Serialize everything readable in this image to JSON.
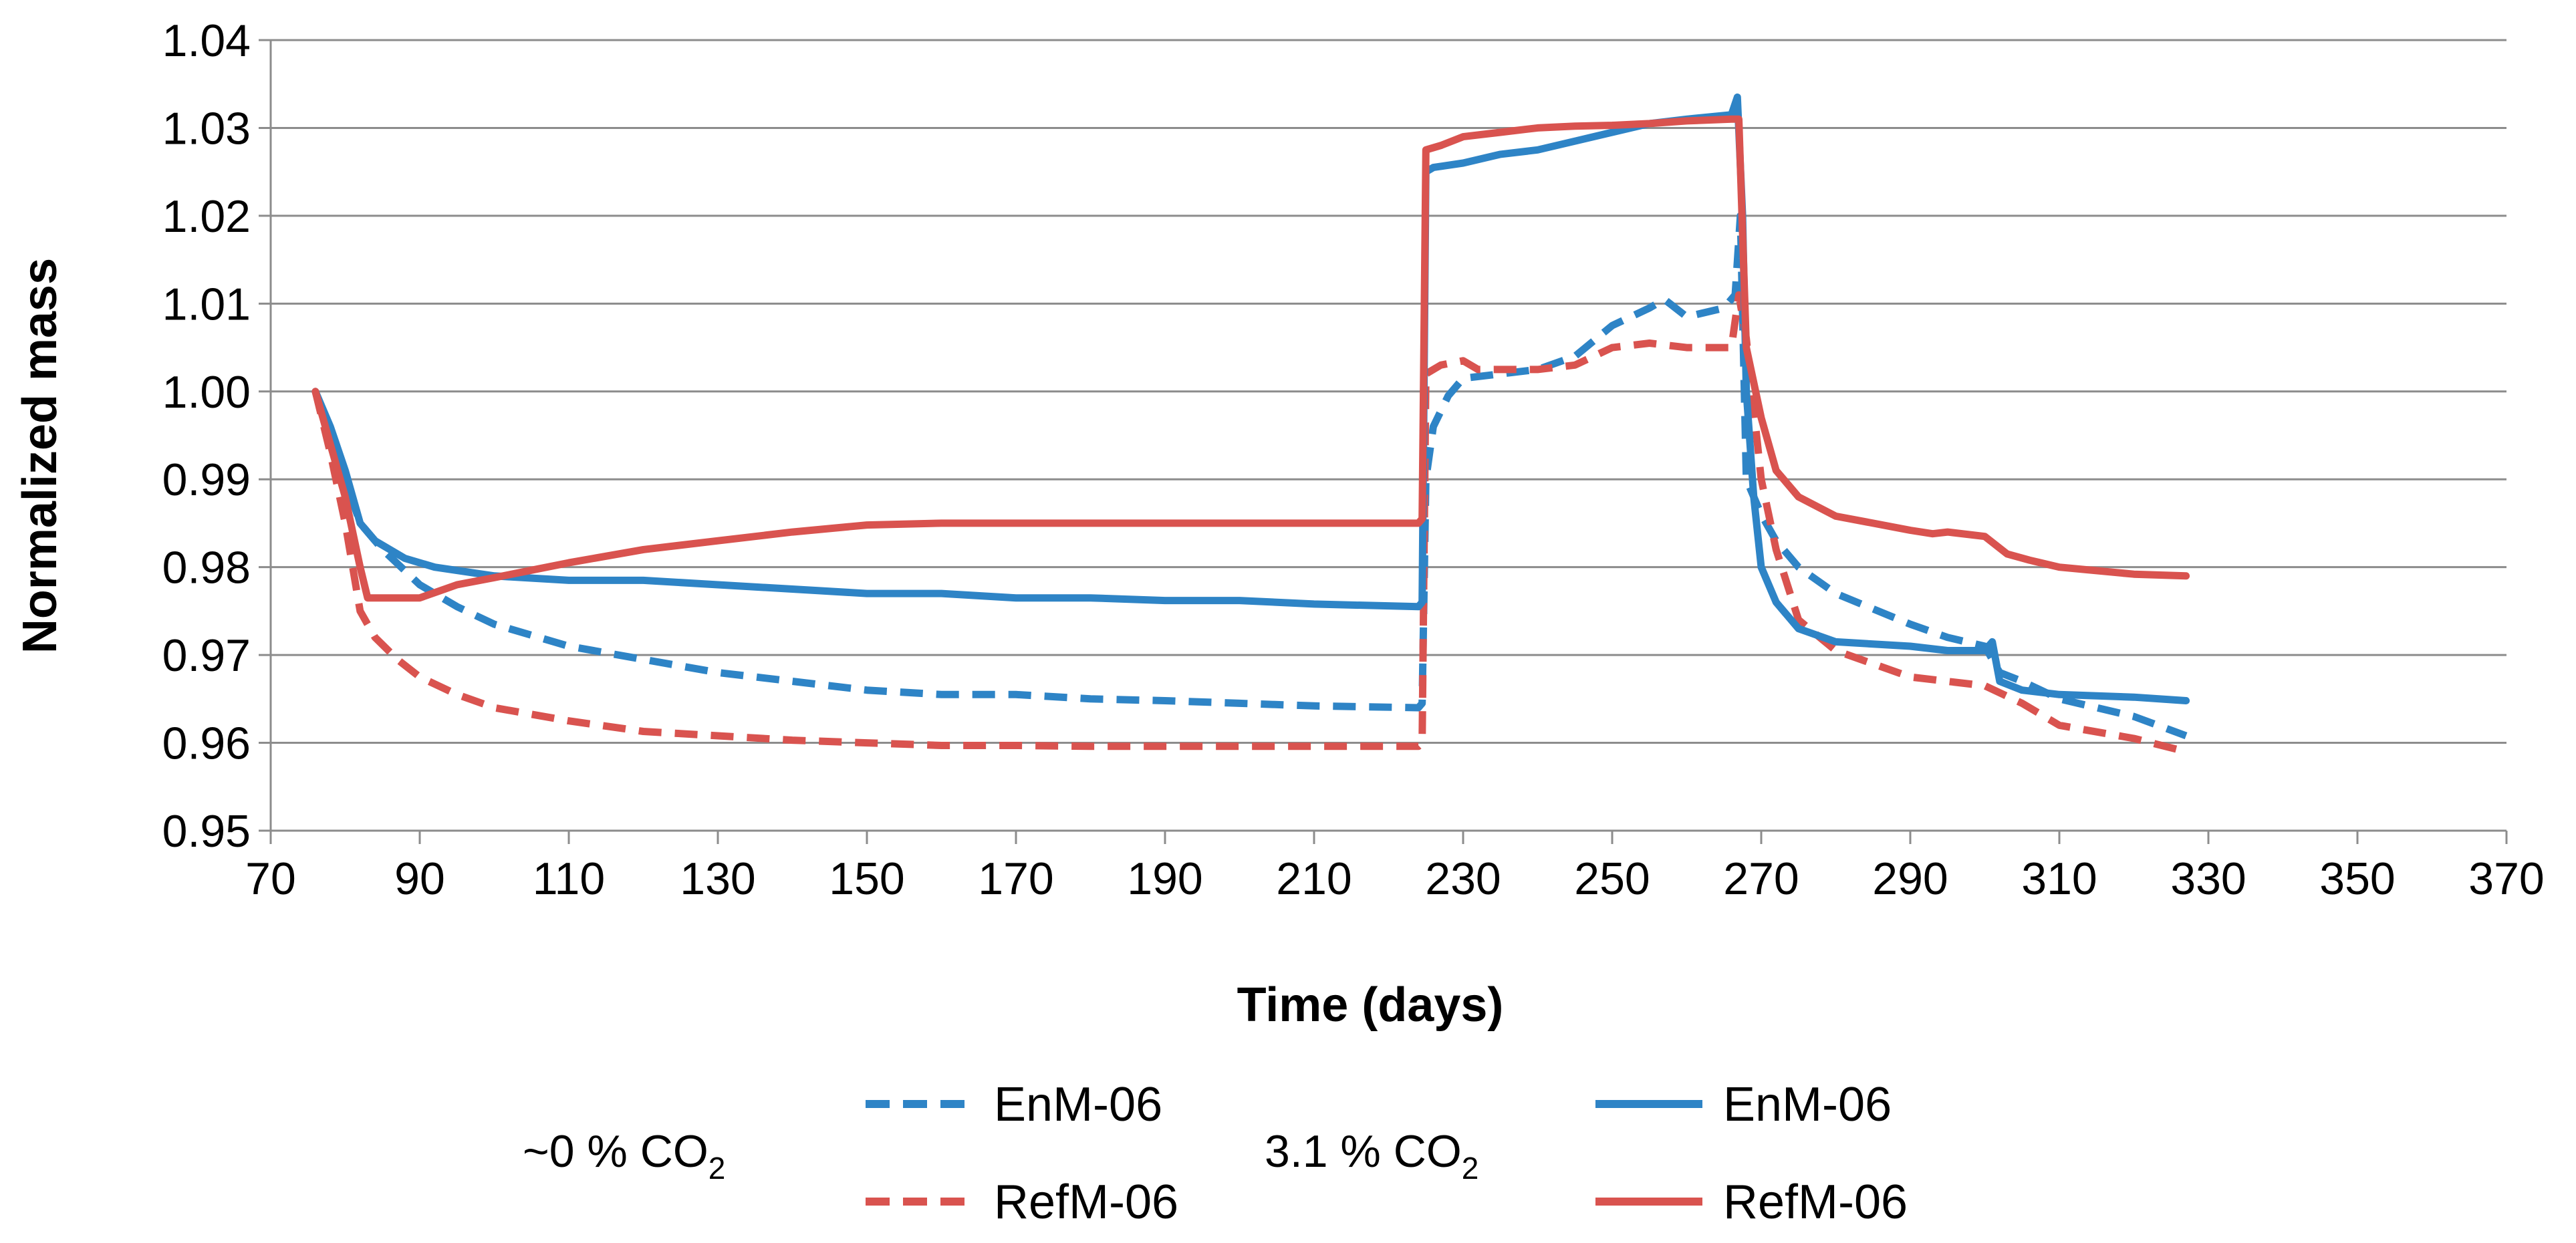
{
  "chart_data": {
    "type": "line",
    "title": "",
    "xlabel": "Time (days)",
    "ylabel": "Normalized mass",
    "xlim": [
      70,
      370
    ],
    "ylim": [
      0.95,
      1.04
    ],
    "x_ticks": [
      70,
      90,
      110,
      130,
      150,
      170,
      190,
      210,
      230,
      250,
      270,
      290,
      310,
      330,
      350,
      370
    ],
    "x_tick_labels": [
      "70",
      "90",
      "110",
      "130",
      "150",
      "170",
      "190",
      "210",
      "230",
      "250",
      "270",
      "290",
      "310",
      "330",
      "350",
      "370"
    ],
    "y_ticks": [
      0.95,
      0.96,
      0.97,
      0.98,
      0.99,
      1.0,
      1.01,
      1.02,
      1.03,
      1.04
    ],
    "y_tick_labels": [
      "0.95",
      "0.96",
      "0.97",
      "0.98",
      "0.99",
      "1.00",
      "1.01",
      "1.02",
      "1.03",
      "1.04"
    ],
    "grid": "horizontal",
    "legend_position": "bottom",
    "legend_groups": [
      {
        "label": "~0 % CO",
        "subscript": "2",
        "style": "dashed",
        "entries": [
          "EnM-06",
          "RefM-06"
        ]
      },
      {
        "label": "3.1 % CO",
        "subscript": "2",
        "style": "solid",
        "entries": [
          "EnM-06",
          "RefM-06"
        ]
      }
    ],
    "series": [
      {
        "name": "EnM-06",
        "group": "~0 % CO2",
        "color": "#2E84C6",
        "style": "dashed",
        "points": [
          [
            76,
            1.0
          ],
          [
            78,
            0.995
          ],
          [
            80,
            0.99
          ],
          [
            82,
            0.985
          ],
          [
            85,
            0.982
          ],
          [
            90,
            0.978
          ],
          [
            95,
            0.9755
          ],
          [
            100,
            0.9735
          ],
          [
            110,
            0.971
          ],
          [
            120,
            0.9695
          ],
          [
            130,
            0.968
          ],
          [
            140,
            0.967
          ],
          [
            150,
            0.966
          ],
          [
            160,
            0.9655
          ],
          [
            170,
            0.9655
          ],
          [
            180,
            0.965
          ],
          [
            190,
            0.9648
          ],
          [
            200,
            0.9645
          ],
          [
            210,
            0.9642
          ],
          [
            224,
            0.964
          ],
          [
            224.5,
            0.9645
          ],
          [
            225,
            0.99
          ],
          [
            226,
            0.996
          ],
          [
            228,
            0.9995
          ],
          [
            230,
            1.0015
          ],
          [
            235,
            1.002
          ],
          [
            240,
            1.0025
          ],
          [
            245,
            1.004
          ],
          [
            250,
            1.0075
          ],
          [
            255,
            1.0095
          ],
          [
            257,
            1.0105
          ],
          [
            260,
            1.0085
          ],
          [
            265,
            1.0095
          ],
          [
            266.5,
            1.011
          ],
          [
            267.2,
            1.02
          ],
          [
            268,
            0.99
          ],
          [
            270,
            0.986
          ],
          [
            272,
            0.983
          ],
          [
            275,
            0.98
          ],
          [
            280,
            0.977
          ],
          [
            290,
            0.9735
          ],
          [
            295,
            0.972
          ],
          [
            300,
            0.971
          ],
          [
            302,
            0.968
          ],
          [
            305,
            0.967
          ],
          [
            310,
            0.965
          ],
          [
            320,
            0.963
          ],
          [
            327,
            0.9608
          ]
        ]
      },
      {
        "name": "RefM-06",
        "group": "~0 % CO2",
        "color": "#D9534F",
        "style": "dashed",
        "points": [
          [
            76,
            1.0
          ],
          [
            78,
            0.993
          ],
          [
            80,
            0.985
          ],
          [
            82,
            0.975
          ],
          [
            84,
            0.972
          ],
          [
            87,
            0.9695
          ],
          [
            90,
            0.9675
          ],
          [
            95,
            0.9655
          ],
          [
            100,
            0.964
          ],
          [
            110,
            0.9625
          ],
          [
            120,
            0.9613
          ],
          [
            130,
            0.9608
          ],
          [
            140,
            0.9603
          ],
          [
            150,
            0.96
          ],
          [
            160,
            0.9597
          ],
          [
            170,
            0.9597
          ],
          [
            180,
            0.9596
          ],
          [
            190,
            0.9596
          ],
          [
            200,
            0.9596
          ],
          [
            210,
            0.9596
          ],
          [
            224,
            0.9596
          ],
          [
            224.5,
            0.96
          ],
          [
            225,
            1.002
          ],
          [
            227,
            1.003
          ],
          [
            230,
            1.0035
          ],
          [
            232,
            1.0025
          ],
          [
            240,
            1.0025
          ],
          [
            245,
            1.003
          ],
          [
            250,
            1.005
          ],
          [
            255,
            1.0055
          ],
          [
            260,
            1.005
          ],
          [
            266,
            1.005
          ],
          [
            267,
            1.011
          ],
          [
            268,
            1.006
          ],
          [
            270,
            0.99
          ],
          [
            272,
            0.982
          ],
          [
            275,
            0.974
          ],
          [
            280,
            0.9705
          ],
          [
            290,
            0.9675
          ],
          [
            300,
            0.9665
          ],
          [
            305,
            0.9645
          ],
          [
            310,
            0.962
          ],
          [
            320,
            0.9605
          ],
          [
            327,
            0.959
          ]
        ]
      },
      {
        "name": "EnM-06",
        "group": "3.1 % CO2",
        "color": "#2E84C6",
        "style": "solid",
        "points": [
          [
            76,
            1.0
          ],
          [
            78,
            0.996
          ],
          [
            80,
            0.991
          ],
          [
            82,
            0.985
          ],
          [
            84,
            0.983
          ],
          [
            88,
            0.981
          ],
          [
            92,
            0.98
          ],
          [
            100,
            0.979
          ],
          [
            110,
            0.9785
          ],
          [
            120,
            0.9785
          ],
          [
            130,
            0.978
          ],
          [
            140,
            0.9775
          ],
          [
            150,
            0.977
          ],
          [
            160,
            0.977
          ],
          [
            170,
            0.9765
          ],
          [
            180,
            0.9765
          ],
          [
            190,
            0.9762
          ],
          [
            200,
            0.9762
          ],
          [
            210,
            0.9758
          ],
          [
            224,
            0.9755
          ],
          [
            224.5,
            0.976
          ],
          [
            225,
            1.025
          ],
          [
            226,
            1.0255
          ],
          [
            230,
            1.026
          ],
          [
            235,
            1.027
          ],
          [
            240,
            1.0275
          ],
          [
            245,
            1.0285
          ],
          [
            250,
            1.0295
          ],
          [
            255,
            1.0305
          ],
          [
            260,
            1.031
          ],
          [
            266,
            1.0315
          ],
          [
            266.8,
            1.0335
          ],
          [
            267.5,
            1.02
          ],
          [
            268,
            1.0
          ],
          [
            269,
            0.988
          ],
          [
            270,
            0.98
          ],
          [
            272,
            0.976
          ],
          [
            275,
            0.973
          ],
          [
            280,
            0.9715
          ],
          [
            290,
            0.971
          ],
          [
            295,
            0.9705
          ],
          [
            300,
            0.9705
          ],
          [
            301,
            0.9715
          ],
          [
            302,
            0.967
          ],
          [
            305,
            0.966
          ],
          [
            310,
            0.9655
          ],
          [
            320,
            0.9652
          ],
          [
            327,
            0.9648
          ]
        ]
      },
      {
        "name": "RefM-06",
        "group": "3.1 % CO2",
        "color": "#D9534F",
        "style": "solid",
        "points": [
          [
            76,
            1.0
          ],
          [
            78,
            0.994
          ],
          [
            80,
            0.988
          ],
          [
            82,
            0.98
          ],
          [
            83,
            0.9765
          ],
          [
            90,
            0.9765
          ],
          [
            95,
            0.978
          ],
          [
            100,
            0.9788
          ],
          [
            110,
            0.9805
          ],
          [
            120,
            0.982
          ],
          [
            130,
            0.983
          ],
          [
            140,
            0.984
          ],
          [
            150,
            0.9848
          ],
          [
            160,
            0.985
          ],
          [
            170,
            0.985
          ],
          [
            180,
            0.985
          ],
          [
            190,
            0.985
          ],
          [
            200,
            0.985
          ],
          [
            210,
            0.985
          ],
          [
            224,
            0.985
          ],
          [
            224.5,
            0.9855
          ],
          [
            225,
            1.0275
          ],
          [
            227,
            1.028
          ],
          [
            230,
            1.029
          ],
          [
            235,
            1.0295
          ],
          [
            240,
            1.03
          ],
          [
            245,
            1.0302
          ],
          [
            250,
            1.0303
          ],
          [
            255,
            1.0305
          ],
          [
            260,
            1.0308
          ],
          [
            266,
            1.031
          ],
          [
            267,
            1.031
          ],
          [
            268,
            1.005
          ],
          [
            270,
            0.997
          ],
          [
            272,
            0.991
          ],
          [
            275,
            0.988
          ],
          [
            280,
            0.9858
          ],
          [
            285,
            0.985
          ],
          [
            290,
            0.9842
          ],
          [
            293,
            0.9838
          ],
          [
            295,
            0.984
          ],
          [
            300,
            0.9835
          ],
          [
            303,
            0.9815
          ],
          [
            306,
            0.9808
          ],
          [
            310,
            0.98
          ],
          [
            320,
            0.9792
          ],
          [
            327,
            0.979
          ]
        ]
      }
    ]
  }
}
